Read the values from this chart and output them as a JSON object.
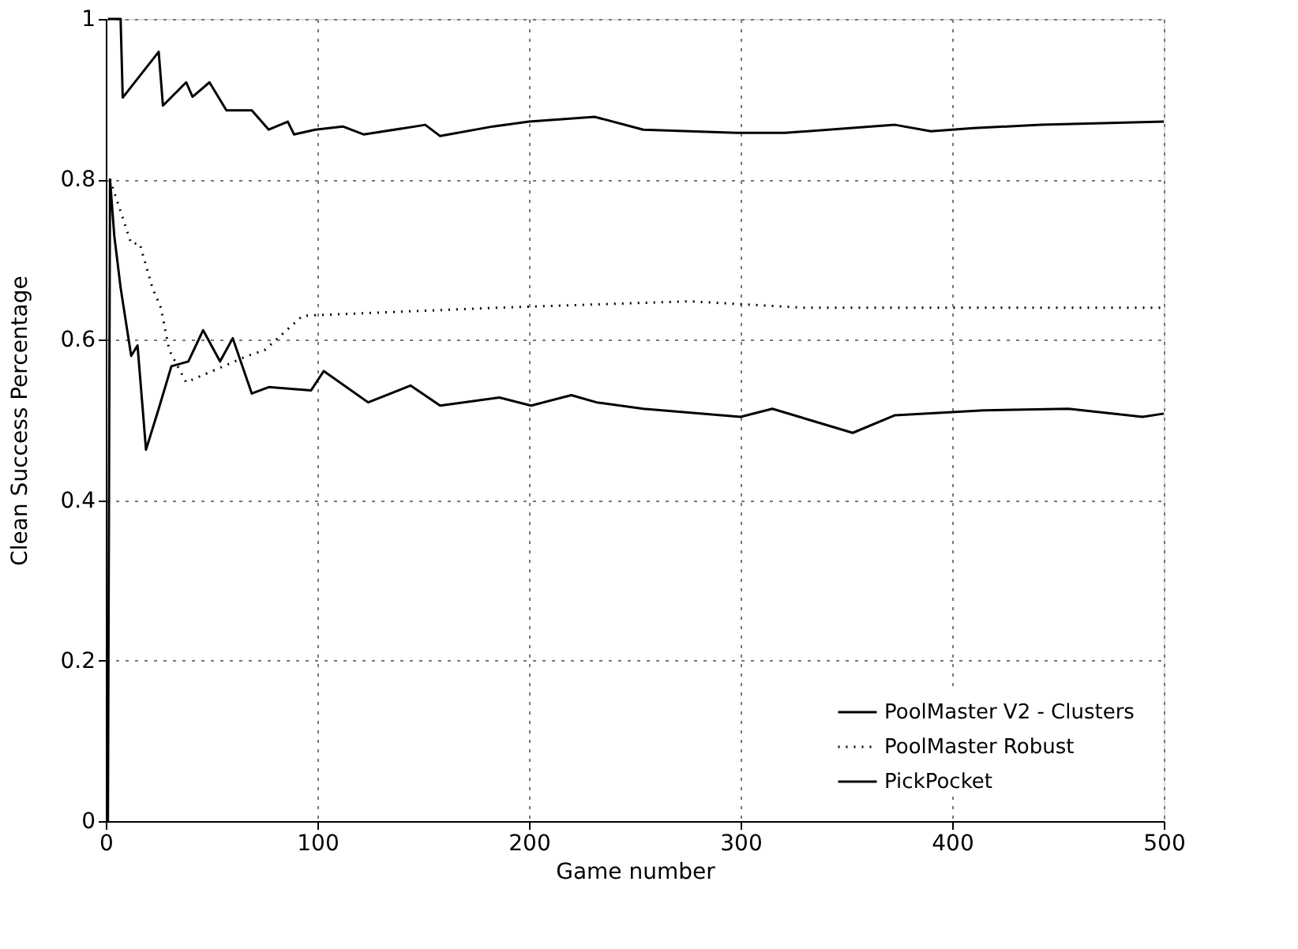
{
  "chart_data": {
    "type": "line",
    "xlabel": "Game number",
    "ylabel": "Clean Success Percentage",
    "xlim": [
      0,
      500
    ],
    "ylim": [
      0,
      1
    ],
    "xticks": [
      0,
      100,
      200,
      300,
      400,
      500
    ],
    "yticks": [
      0,
      0.2,
      0.4,
      0.6,
      0.8,
      1
    ],
    "grid": true,
    "legend": "bottom right",
    "marker": "none",
    "series": [
      {
        "name": "PoolMaster V2 - Clusters",
        "color": "#000000",
        "line_style": "solid",
        "x": [
          1,
          7,
          8,
          25,
          27,
          38,
          41,
          49,
          57,
          69,
          77,
          86,
          89,
          99,
          112,
          122,
          151,
          158,
          183,
          200,
          231,
          254,
          298,
          321,
          373,
          390,
          410,
          442,
          500
        ],
        "values": [
          1,
          1,
          0.902,
          0.959,
          0.892,
          0.921,
          0.903,
          0.921,
          0.886,
          0.886,
          0.862,
          0.872,
          0.856,
          0.862,
          0.866,
          0.856,
          0.868,
          0.854,
          0.866,
          0.872,
          0.878,
          0.862,
          0.858,
          0.858,
          0.868,
          0.86,
          0.864,
          0.868,
          0.872
        ]
      },
      {
        "name": "PoolMaster Robust",
        "color": "#000000",
        "line_style": "dotted",
        "x": [
          2,
          12,
          16,
          22,
          26,
          30,
          38,
          67,
          75,
          93,
          185,
          276,
          330,
          444,
          500
        ],
        "values": [
          0.8,
          0.72,
          0.72,
          0.665,
          0.64,
          0.587,
          0.547,
          0.58,
          0.587,
          0.63,
          0.64,
          0.648,
          0.64,
          0.64,
          0.64
        ]
      },
      {
        "name": "PickPocket",
        "color": "#000000",
        "line_style": "solid",
        "x": [
          1,
          2,
          4,
          7,
          12,
          15,
          19,
          25,
          31,
          39,
          46,
          54,
          60,
          69,
          77,
          97,
          103,
          124,
          144,
          158,
          186,
          201,
          220,
          232,
          254,
          300,
          315,
          353,
          373,
          415,
          455,
          490,
          500
        ],
        "values": [
          0,
          0.8,
          0.73,
          0.665,
          0.58,
          0.593,
          0.463,
          0.514,
          0.567,
          0.573,
          0.612,
          0.573,
          0.602,
          0.533,
          0.541,
          0.537,
          0.561,
          0.522,
          0.543,
          0.518,
          0.528,
          0.518,
          0.531,
          0.522,
          0.514,
          0.504,
          0.514,
          0.484,
          0.506,
          0.512,
          0.514,
          0.504,
          0.508
        ]
      }
    ]
  }
}
